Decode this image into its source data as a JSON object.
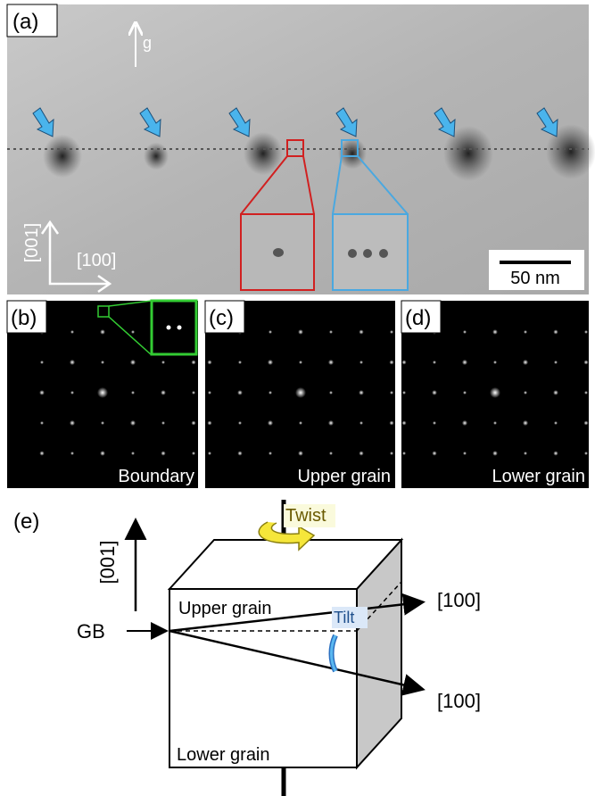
{
  "panel_a": {
    "label": "(a)",
    "g_vector": "g",
    "axis_vertical": "[001]",
    "axis_horizontal": "[100]",
    "scale_bar": "50 nm"
  },
  "panel_b": {
    "label": "(b)",
    "caption": "Boundary"
  },
  "panel_c": {
    "label": "(c)",
    "caption": "Upper grain"
  },
  "panel_d": {
    "label": "(d)",
    "caption": "Lower grain"
  },
  "panel_e": {
    "label": "(e)",
    "twist": "Twist",
    "axis": "[001]",
    "upper_grain": "Upper grain",
    "tilt": "Tilt",
    "gb": "GB",
    "direction_upper": "[100]",
    "direction_lower": "[100]",
    "lower_grain": "Lower grain"
  }
}
